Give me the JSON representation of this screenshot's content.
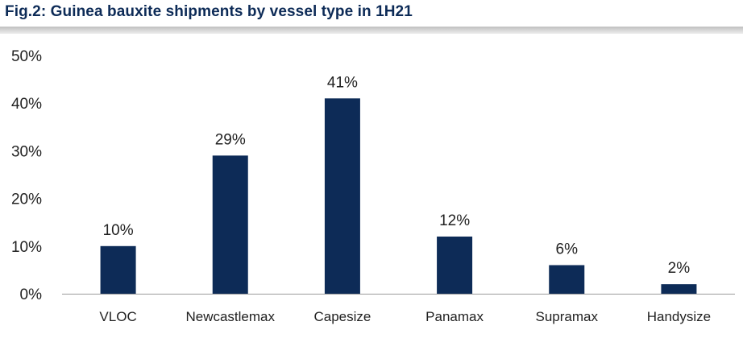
{
  "title": "Fig.2: Guinea bauxite shipments by vessel type in 1H21",
  "chart_data": {
    "type": "bar",
    "categories": [
      "VLOC",
      "Newcastlemax",
      "Capesize",
      "Panamax",
      "Supramax",
      "Handysize"
    ],
    "values": [
      10,
      29,
      41,
      12,
      6,
      2
    ],
    "data_labels": [
      "10%",
      "29%",
      "41%",
      "12%",
      "6%",
      "2%"
    ],
    "y_ticks": [
      0,
      10,
      20,
      30,
      40,
      50
    ],
    "y_tick_labels": [
      "0%",
      "10%",
      "20%",
      "30%",
      "40%",
      "50%"
    ],
    "ylim": [
      0,
      50
    ],
    "xlabel": "",
    "ylabel": "",
    "grid": false,
    "legend": "none",
    "bar_color": "#0d2b57"
  }
}
